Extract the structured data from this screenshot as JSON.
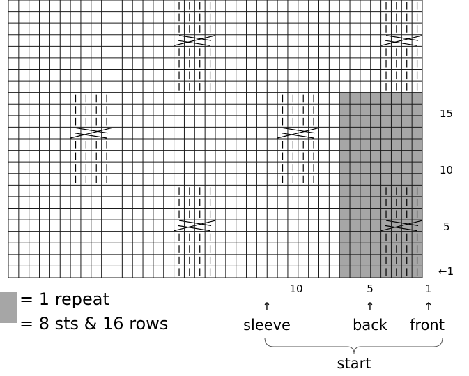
{
  "chart": {
    "stitch_count": 40,
    "row_count": 24,
    "row_numbers": [
      "1",
      "5",
      "10",
      "15"
    ],
    "row_one_prefix": "←",
    "stitch_numbers": [
      "1",
      "5",
      "10"
    ],
    "arrow_glyph": "↑",
    "position_labels": [
      "front",
      "back",
      "sleeve"
    ],
    "start_label": "start",
    "shaded_repeat": {
      "first_stitch": 1,
      "last_stitch": 8,
      "first_row": 1,
      "last_row": 16
    }
  },
  "legend": {
    "line1": "= 1 repeat",
    "line2": "= 8 sts & 16 rows",
    "swatch_color": "#a6a6a6"
  },
  "colors": {
    "grid": "#1a1a1a",
    "shade": "#a6a6a6",
    "marker": "#000000"
  }
}
